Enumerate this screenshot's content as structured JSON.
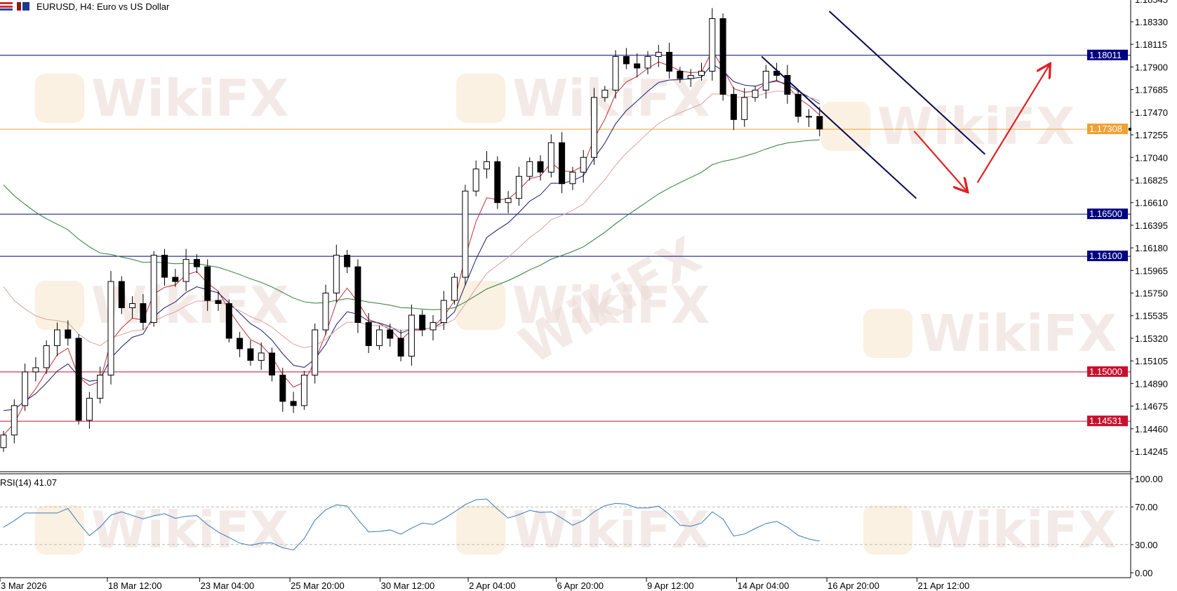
{
  "header": {
    "title": "EURUSD, H4:  Euro vs US Dollar",
    "icons": [
      "chart-window-icon",
      "chart-type-icon"
    ]
  },
  "watermark": "WikiFX",
  "colors": {
    "bull_body": "#ffffff",
    "bear_body": "#000000",
    "ma_fast": "#c0303a",
    "ma_mid": "#1a1a6e",
    "ma_slow": "#e0a0a0",
    "ma_long": "#2e7d32",
    "support_resistance": "#000080",
    "current_price": "#f0a030",
    "key_level": "#c8102e",
    "channel": "#0a0a50",
    "arrow": "#e02020",
    "rsi": "#3a7ab8"
  },
  "chart_data": [
    {
      "type": "candlestick",
      "symbol": "EURUSD",
      "timeframe": "H4",
      "ylim": [
        1.141,
        1.1855
      ],
      "y_ticks": [
        "1.18545",
        "1.18330",
        "1.18115",
        "1.17900",
        "1.17685",
        "1.17470",
        "1.17255",
        "1.17040",
        "1.16825",
        "1.16610",
        "1.16395",
        "1.16180",
        "1.15965",
        "1.15750",
        "1.15535",
        "1.15320",
        "1.15105",
        "1.14890",
        "1.14675",
        "1.14460",
        "1.14245"
      ],
      "x_ticks": [
        {
          "label": "3 Mar 2026",
          "index": 0
        },
        {
          "label": "18 Mar 12:00",
          "index": 10
        },
        {
          "label": "23 Mar 04:00",
          "index": 18.6
        },
        {
          "label": "25 Mar 20:00",
          "index": 27
        },
        {
          "label": "30 Mar 12:00",
          "index": 35.4
        },
        {
          "label": "2 Apr 04:00",
          "index": 43.6
        },
        {
          "label": "6 Apr 20:00",
          "index": 51.8
        },
        {
          "label": "9 Apr 12:00",
          "index": 60.2
        },
        {
          "label": "14 Apr 04:00",
          "index": 68.6
        },
        {
          "label": "16 Apr 20:00",
          "index": 77
        },
        {
          "label": "21 Apr 12:00",
          "index": 85.4
        }
      ],
      "close": [
        1.144,
        1.1468,
        1.15,
        1.1504,
        1.1525,
        1.154,
        1.1532,
        1.1454,
        1.1475,
        1.1497,
        1.1586,
        1.1561,
        1.1565,
        1.1547,
        1.1611,
        1.159,
        1.1586,
        1.1607,
        1.16,
        1.1568,
        1.1565,
        1.1532,
        1.1522,
        1.1511,
        1.1518,
        1.1497,
        1.1472,
        1.1468,
        1.1497,
        1.154,
        1.1575,
        1.1611,
        1.16,
        1.1547,
        1.1525,
        1.154,
        1.1532,
        1.1515,
        1.1554,
        1.154,
        1.1547,
        1.1568,
        1.159,
        1.1672,
        1.1693,
        1.17,
        1.1661,
        1.1665,
        1.1686,
        1.17,
        1.169,
        1.1718,
        1.1679,
        1.169,
        1.1704,
        1.1761,
        1.1768,
        1.18,
        1.1793,
        1.1789,
        1.18,
        1.1804,
        1.1786,
        1.1779,
        1.1782,
        1.1786,
        1.1836,
        1.1764,
        1.174,
        1.1761,
        1.1768,
        1.1786,
        1.1782,
        1.1764,
        1.1743,
        1.1743,
        1.1731
      ],
      "horizontal_levels": [
        {
          "price": "1.18011",
          "role": "resistance",
          "color": "#000080"
        },
        {
          "price": "1.17308",
          "role": "current",
          "color": "#f0a030"
        },
        {
          "price": "1.16500",
          "role": "support",
          "color": "#000080"
        },
        {
          "price": "1.16100",
          "role": "support",
          "color": "#000080"
        },
        {
          "price": "1.15000",
          "role": "key",
          "color": "#c8102e"
        },
        {
          "price": "1.14531",
          "role": "key",
          "color": "#c8102e"
        }
      ],
      "channel": [
        {
          "from": {
            "index": 76.9,
            "price": 1.1843
          },
          "to": {
            "index": 91.4,
            "price": 1.1707
          }
        },
        {
          "from": {
            "index": 70.6,
            "price": 1.18
          },
          "to": {
            "index": 85,
            "price": 1.1665
          }
        }
      ],
      "arrows": [
        {
          "from": {
            "index": 84.8,
            "price": 1.1729
          },
          "to": {
            "index": 89.7,
            "price": 1.1672
          }
        },
        {
          "from": {
            "index": 90.7,
            "price": 1.168
          },
          "to": {
            "index": 97.4,
            "price": 1.1792
          }
        }
      ]
    },
    {
      "type": "line",
      "indicator": "RSI(14)",
      "label": "RSI(14) 41.07",
      "ylim": [
        0,
        100
      ],
      "y_ticks": [
        "100.00",
        "70.00",
        "30.00",
        "0.00"
      ],
      "levels": [
        70,
        30
      ]
    }
  ]
}
